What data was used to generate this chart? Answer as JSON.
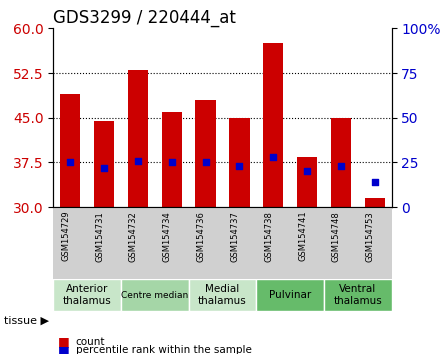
{
  "title": "GDS3299 / 220444_at",
  "samples": [
    "GSM154729",
    "GSM154731",
    "GSM154732",
    "GSM154734",
    "GSM154736",
    "GSM154737",
    "GSM154738",
    "GSM154741",
    "GSM154748",
    "GSM154753"
  ],
  "counts": [
    49.0,
    44.5,
    53.0,
    46.0,
    48.0,
    45.0,
    57.5,
    38.5,
    45.0,
    31.5
  ],
  "percentiles": [
    25,
    22,
    26,
    25,
    25,
    23,
    28,
    20,
    23,
    14
  ],
  "ylim_left": [
    30,
    60
  ],
  "ylim_right": [
    0,
    100
  ],
  "yticks_left": [
    30,
    37.5,
    45,
    52.5,
    60
  ],
  "yticks_right": [
    0,
    25,
    50,
    75,
    100
  ],
  "bar_color": "#cc0000",
  "percentile_color": "#0000cc",
  "bar_width": 0.6,
  "groups": [
    {
      "label": "Anterior\nthalamus",
      "start": 0,
      "end": 2,
      "color": "#c8e6c9"
    },
    {
      "label": "Centre median",
      "start": 2,
      "end": 4,
      "color": "#a5d6a7"
    },
    {
      "label": "Medial\nthalamus",
      "start": 4,
      "end": 6,
      "color": "#c8e6c9"
    },
    {
      "label": "Pulvinar",
      "start": 6,
      "end": 8,
      "color": "#66bb6a"
    },
    {
      "label": "Ventral\nthalamus",
      "start": 8,
      "end": 10,
      "color": "#66bb6a"
    }
  ],
  "legend_count_label": "count",
  "legend_pct_label": "percentile rank within the sample",
  "tissue_label": "tissue",
  "background_plot": "#ffffff",
  "background_xlabel": "#d0d0d0",
  "grid_color": "#000000",
  "title_color": "#000000",
  "left_axis_color": "#cc0000",
  "right_axis_color": "#0000cc"
}
